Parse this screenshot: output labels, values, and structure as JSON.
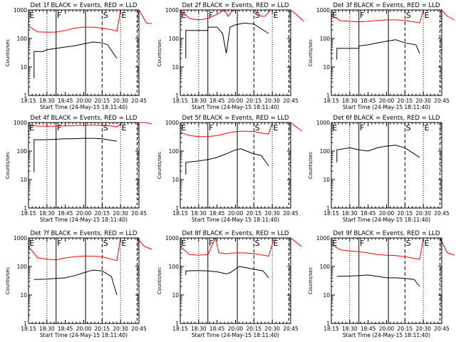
{
  "page": {
    "background": "#ffffff"
  },
  "colors": {
    "events": "#000000",
    "lld": "#ff0000",
    "axis": "#000000"
  },
  "common": {
    "xlabel": "Start Time (24-May-15 18:11:40)",
    "ylabel": "Counts/sec",
    "x_tick_labels": [
      "18:15",
      "18:30",
      "18:45",
      "20:00",
      "20:15",
      "20:30",
      "20:45"
    ],
    "y_tick_labels": [
      "1",
      "10",
      "100",
      "1000"
    ],
    "ylim": [
      1,
      1000
    ],
    "yscale": "log",
    "x_tick_count": 7
  },
  "chart_data": [
    {
      "type": "line",
      "title": "Det 1f BLACK = Events, RED = LLD",
      "letters": [
        "E",
        "F",
        "S",
        "E"
      ],
      "events": [
        [
          0.3,
          4
        ],
        [
          0.3,
          35
        ],
        [
          0.8,
          35
        ],
        [
          1,
          40
        ],
        [
          1.5,
          45
        ],
        [
          2,
          50
        ],
        [
          2.5,
          55
        ],
        [
          3,
          65
        ],
        [
          3.5,
          75
        ],
        [
          4,
          70
        ],
        [
          4.3,
          60
        ],
        [
          4.8,
          20
        ]
      ],
      "lld": [
        [
          0,
          270
        ],
        [
          0.5,
          170
        ],
        [
          1,
          165
        ],
        [
          1.5,
          168
        ],
        [
          2,
          190
        ],
        [
          2.5,
          230
        ],
        [
          3,
          250
        ],
        [
          3.5,
          250
        ],
        [
          4,
          230
        ],
        [
          4.6,
          200
        ],
        [
          4.8,
          180
        ],
        [
          5,
          2000
        ],
        [
          5.5,
          2000
        ],
        [
          6,
          2000
        ],
        [
          6.2,
          600
        ],
        [
          6.4,
          350
        ],
        [
          6.7,
          330
        ]
      ]
    },
    {
      "type": "line",
      "title": "Det 2f BLACK = Events, RED = LLD",
      "letters": [
        "E",
        "F",
        "S",
        "E"
      ],
      "events": [
        [
          0.3,
          20
        ],
        [
          0.3,
          190
        ],
        [
          1.5,
          190
        ],
        [
          1.5,
          250
        ],
        [
          2,
          250
        ],
        [
          2.3,
          150
        ],
        [
          2.5,
          30
        ],
        [
          2.7,
          250
        ],
        [
          3,
          300
        ],
        [
          3.5,
          350
        ],
        [
          4,
          320
        ],
        [
          4.8,
          150
        ]
      ],
      "lld": [
        [
          0,
          1200
        ],
        [
          0.5,
          500
        ],
        [
          1,
          450
        ],
        [
          1.5,
          500
        ],
        [
          2,
          700
        ],
        [
          2.4,
          1500
        ],
        [
          2.6,
          600
        ],
        [
          2.8,
          900
        ],
        [
          3,
          1100
        ],
        [
          3.5,
          1200
        ],
        [
          4,
          1000
        ],
        [
          4.4,
          600
        ],
        [
          4.6,
          600
        ],
        [
          4.9,
          2000
        ],
        [
          5.5,
          2000
        ],
        [
          6,
          2000
        ],
        [
          6.3,
          700
        ],
        [
          6.7,
          400
        ]
      ]
    },
    {
      "type": "line",
      "title": "Det 3f BLACK = Events, RED = LLD",
      "letters": [
        "E",
        "F",
        "S",
        "E"
      ],
      "events": [
        [
          0.3,
          18
        ],
        [
          0.3,
          45
        ],
        [
          1.5,
          45
        ],
        [
          1.5,
          55
        ],
        [
          2,
          60
        ],
        [
          2.5,
          70
        ],
        [
          3,
          80
        ],
        [
          3.5,
          90
        ],
        [
          4,
          70
        ],
        [
          4.6,
          60
        ],
        [
          4.8,
          30
        ]
      ],
      "lld": [
        [
          0,
          650
        ],
        [
          0.5,
          420
        ],
        [
          1,
          400
        ],
        [
          1.5,
          380
        ],
        [
          2,
          400
        ],
        [
          2.5,
          430
        ],
        [
          3,
          450
        ],
        [
          3.5,
          450
        ],
        [
          4,
          430
        ],
        [
          4.5,
          380
        ],
        [
          4.8,
          350
        ],
        [
          5,
          2000
        ],
        [
          5.6,
          2000
        ],
        [
          6,
          2000
        ],
        [
          6.3,
          600
        ],
        [
          6.7,
          450
        ]
      ]
    },
    {
      "type": "line",
      "title": "Det 4f BLACK = Events, RED = LLD",
      "letters": [
        "E",
        "F",
        "S",
        "E"
      ],
      "events": [
        [
          0.3,
          18
        ],
        [
          0.3,
          250
        ],
        [
          1,
          250
        ],
        [
          1.5,
          260
        ],
        [
          2,
          270
        ],
        [
          2.5,
          270
        ],
        [
          3,
          280
        ],
        [
          3.5,
          280
        ],
        [
          4,
          270
        ],
        [
          4.8,
          220
        ]
      ],
      "lld": [
        [
          0,
          800
        ],
        [
          0.5,
          750
        ],
        [
          1,
          740
        ],
        [
          1.5,
          750
        ],
        [
          2,
          760
        ],
        [
          2.5,
          780
        ],
        [
          3,
          800
        ],
        [
          3.5,
          810
        ],
        [
          4,
          800
        ],
        [
          4.5,
          760
        ],
        [
          4.8,
          700
        ],
        [
          5.1,
          2000
        ],
        [
          5.6,
          2000
        ],
        [
          5.9,
          2000
        ],
        [
          6.3,
          1000
        ],
        [
          6.7,
          900
        ]
      ]
    },
    {
      "type": "line",
      "title": "Det 5f BLACK = Events, RED = LLD",
      "letters": [
        "E",
        "F",
        "S",
        "E"
      ],
      "events": [
        [
          0.3,
          15
        ],
        [
          0.3,
          40
        ],
        [
          1,
          45
        ],
        [
          1.5,
          50
        ],
        [
          2,
          60
        ],
        [
          2.5,
          80
        ],
        [
          3,
          110
        ],
        [
          3.3,
          120
        ],
        [
          3.6,
          100
        ],
        [
          4,
          80
        ],
        [
          4.4,
          70
        ],
        [
          4.8,
          30
        ]
      ],
      "lld": [
        [
          0,
          450
        ],
        [
          0.5,
          350
        ],
        [
          1,
          320
        ],
        [
          1.5,
          320
        ],
        [
          2,
          350
        ],
        [
          2.5,
          420
        ],
        [
          3,
          480
        ],
        [
          3.5,
          500
        ],
        [
          4,
          480
        ],
        [
          4.5,
          420
        ],
        [
          4.8,
          400
        ],
        [
          5,
          2000
        ],
        [
          5.6,
          2000
        ],
        [
          6,
          2000
        ],
        [
          6.3,
          700
        ],
        [
          6.6,
          500
        ]
      ]
    },
    {
      "type": "line",
      "title": "Det 6f BLACK = Events, RED = LLD",
      "letters": [
        "E",
        "F",
        "S",
        "E"
      ],
      "events": [
        [
          0.3,
          40
        ],
        [
          0.3,
          110
        ],
        [
          1,
          130
        ],
        [
          1.5,
          110
        ],
        [
          2,
          100
        ],
        [
          2.5,
          130
        ],
        [
          3,
          150
        ],
        [
          3.5,
          160
        ],
        [
          4,
          130
        ],
        [
          4.8,
          60
        ]
      ],
      "lld": []
    },
    {
      "type": "line",
      "title": "Det 7f BLACK = Events, RED = LLD",
      "letters": [
        "E",
        "F",
        "S",
        "E"
      ],
      "events": [
        [
          0.3,
          35
        ],
        [
          1,
          36
        ],
        [
          1.5,
          38
        ],
        [
          2,
          40
        ],
        [
          2.5,
          48
        ],
        [
          3,
          60
        ],
        [
          3.5,
          75
        ],
        [
          4,
          70
        ],
        [
          4.5,
          45
        ],
        [
          4.8,
          10
        ]
      ],
      "lld": [
        [
          0,
          500
        ],
        [
          0.5,
          200
        ],
        [
          1,
          180
        ],
        [
          1.5,
          170
        ],
        [
          2,
          200
        ],
        [
          2.5,
          220
        ],
        [
          3,
          230
        ],
        [
          3.5,
          230
        ],
        [
          4,
          220
        ],
        [
          4.5,
          180
        ],
        [
          4.8,
          160
        ],
        [
          5,
          2000
        ],
        [
          5.6,
          2000
        ],
        [
          5.9,
          2000
        ],
        [
          6.3,
          500
        ],
        [
          6.7,
          400
        ]
      ]
    },
    {
      "type": "line",
      "title": "Det 8f BLACK = Events, RED = LLD",
      "letters": [
        "E",
        "F",
        "S",
        "E"
      ],
      "events": [
        [
          0.3,
          50
        ],
        [
          0.3,
          70
        ],
        [
          1,
          72
        ],
        [
          1.5,
          70
        ],
        [
          2,
          65
        ],
        [
          2.5,
          55
        ],
        [
          2.7,
          60
        ],
        [
          3.2,
          100
        ],
        [
          3.6,
          90
        ],
        [
          4,
          80
        ],
        [
          4.5,
          70
        ],
        [
          4.8,
          40
        ]
      ],
      "lld": [
        [
          0,
          500
        ],
        [
          0.5,
          260
        ],
        [
          1,
          250
        ],
        [
          1.5,
          260
        ],
        [
          1.9,
          2000
        ],
        [
          2.1,
          300
        ],
        [
          2.5,
          280
        ],
        [
          3,
          300
        ],
        [
          3.5,
          300
        ],
        [
          4,
          280
        ],
        [
          4.5,
          250
        ],
        [
          4.8,
          230
        ],
        [
          5.1,
          2000
        ],
        [
          5.6,
          2000
        ],
        [
          6,
          2000
        ],
        [
          6.3,
          700
        ],
        [
          6.6,
          500
        ]
      ]
    },
    {
      "type": "line",
      "title": "Det 9f BLACK = Events, RED = LLD",
      "letters": [
        "E",
        "F",
        "S",
        "E"
      ],
      "events": [
        [
          0.3,
          45
        ],
        [
          1,
          46
        ],
        [
          1.5,
          48
        ],
        [
          2,
          50
        ],
        [
          2.5,
          45
        ],
        [
          3,
          40
        ],
        [
          3.5,
          40
        ],
        [
          4,
          38
        ],
        [
          4.5,
          35
        ],
        [
          4.8,
          20
        ]
      ],
      "lld": [
        [
          0,
          600
        ],
        [
          0.5,
          380
        ],
        [
          1,
          350
        ],
        [
          1.5,
          330
        ],
        [
          2,
          300
        ],
        [
          2.5,
          260
        ],
        [
          3,
          250
        ],
        [
          3.5,
          240
        ],
        [
          4,
          220
        ],
        [
          4.5,
          190
        ],
        [
          4.8,
          180
        ],
        [
          5,
          2000
        ],
        [
          5.6,
          2000
        ],
        [
          5.9,
          2000
        ],
        [
          6.3,
          300
        ],
        [
          6.7,
          250
        ]
      ]
    }
  ]
}
